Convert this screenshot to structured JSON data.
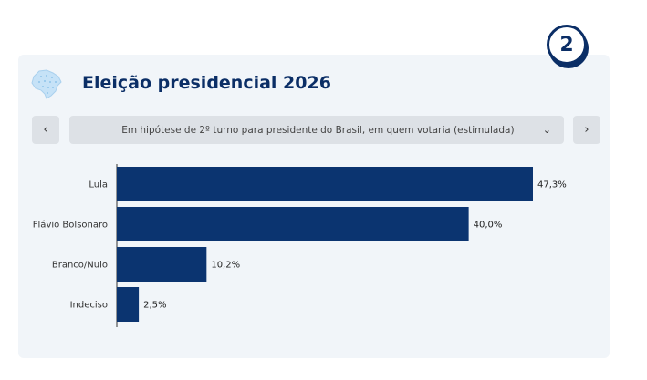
{
  "badge": "2",
  "title": "Eleição presidencial 2026",
  "filter": {
    "prev_icon": "chevron-left-icon",
    "next_icon": "chevron-right-icon",
    "dropdown_icon": "chevron-down-icon",
    "selected": "Em hipótese de 2º turno para presidente do Brasil, em quem votaria (estimulada)"
  },
  "colors": {
    "bar": "#0b3470",
    "title": "#0b2e66",
    "card": "#f1f5f9"
  },
  "chart_data": {
    "type": "bar",
    "orientation": "horizontal",
    "categories": [
      "Lula",
      "Flávio Bolsonaro",
      "Branco/Nulo",
      "Indeciso"
    ],
    "values": [
      47.3,
      40.0,
      10.2,
      2.5
    ],
    "value_labels": [
      "47,3%",
      "40,0%",
      "10,2%",
      "2,5%"
    ],
    "xlim": [
      0,
      47.3
    ],
    "grid": false,
    "legend": "none"
  }
}
